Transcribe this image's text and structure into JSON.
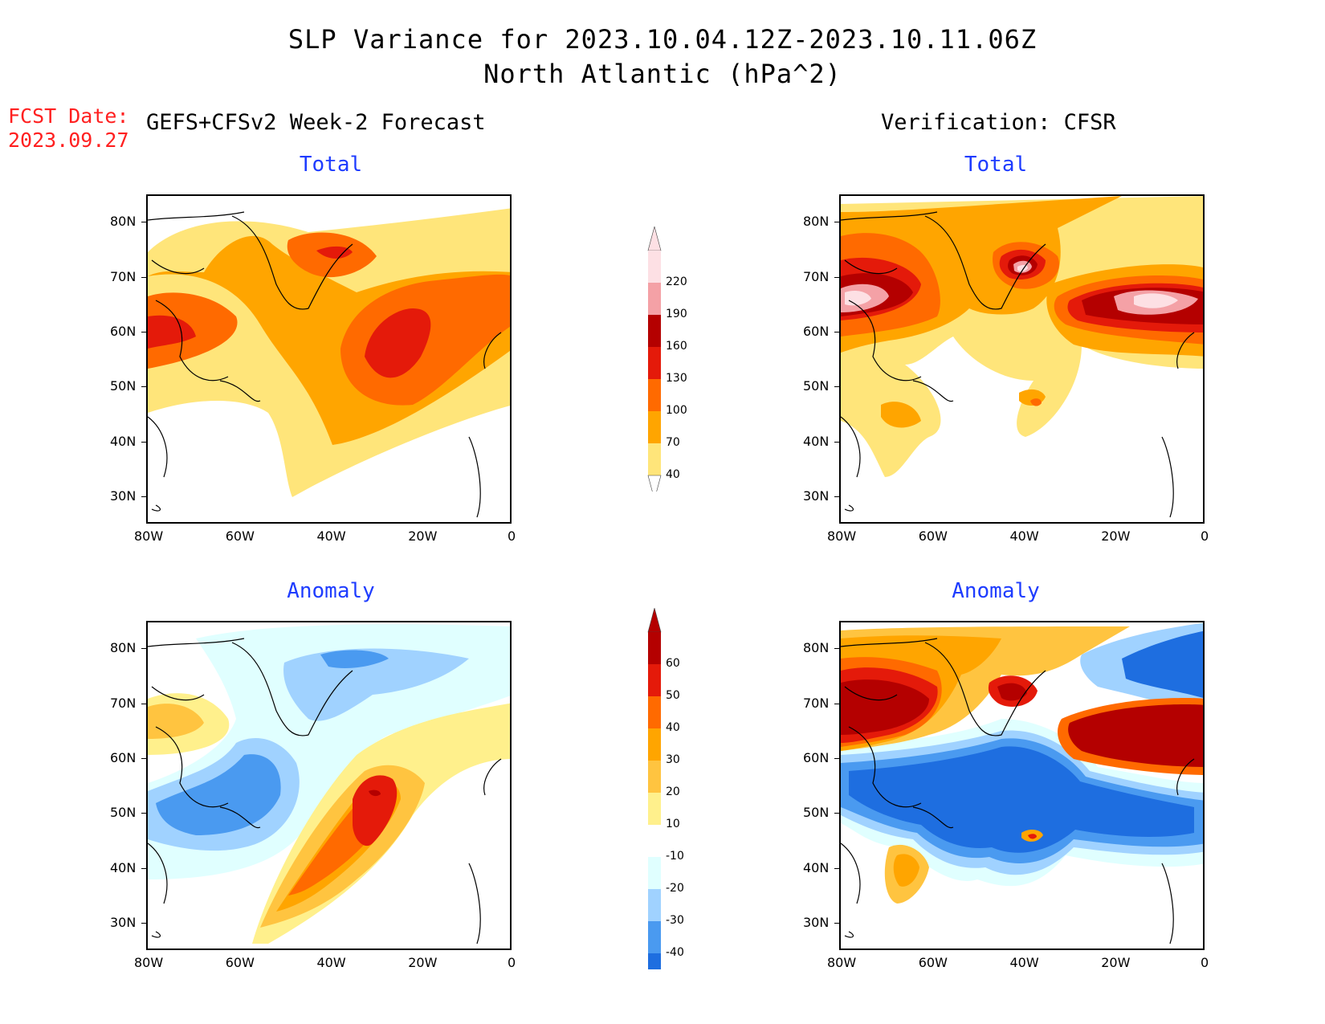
{
  "title": {
    "line1": "SLP Variance for 2023.10.04.12Z-2023.10.11.06Z",
    "line2": "North Atlantic (hPa^2)"
  },
  "fcst_date": {
    "label": "FCST Date:",
    "value": "2023.09.27"
  },
  "left_header": "GEFS+CFSv2 Week-2 Forecast",
  "right_header": "Verification: CFSR",
  "panels": [
    {
      "id": "fc-total",
      "title": "Total"
    },
    {
      "id": "ver-total",
      "title": "Total"
    },
    {
      "id": "fc-anom",
      "title": "Anomaly"
    },
    {
      "id": "ver-anom",
      "title": "Anomaly"
    }
  ],
  "axes": {
    "lat_labels": [
      "80N",
      "70N",
      "60N",
      "50N",
      "40N",
      "30N"
    ],
    "lon_labels": [
      "80W",
      "60W",
      "40W",
      "20W",
      "0"
    ],
    "lat_range": [
      25,
      85
    ],
    "lon_range": [
      -80,
      0
    ]
  },
  "colorbars": {
    "total": {
      "levels": [
        "220",
        "190",
        "160",
        "130",
        "100",
        "70",
        "40"
      ],
      "colors": [
        "#fde0e4",
        "#f4a1a6",
        "#b40000",
        "#e41a0a",
        "#ff6a00",
        "#ffa500",
        "#ffe57a"
      ]
    },
    "anomaly": {
      "levels": [
        "60",
        "50",
        "40",
        "30",
        "20",
        "10",
        "-10",
        "-20",
        "-30",
        "-40"
      ],
      "colors": [
        "#b40000",
        "#e41a0a",
        "#ff6a00",
        "#ffa500",
        "#ffc440",
        "#fff08c",
        "#ffffff",
        "#e0ffff",
        "#a0d2ff",
        "#4a9af0",
        "#1e6ee0"
      ]
    }
  },
  "chart_data": [
    {
      "type": "heatmap",
      "title": "Total",
      "panel": "GEFS+CFSv2 Week-2 Forecast",
      "units": "hPa^2",
      "xlim": [
        -80,
        0
      ],
      "ylim": [
        25,
        85
      ],
      "features": [
        {
          "lon": -40,
          "lat": 74,
          "value": 160
        },
        {
          "lon": -27,
          "lat": 56,
          "value": 160
        },
        {
          "lon": -77,
          "lat": 61,
          "value": 140
        }
      ]
    },
    {
      "type": "heatmap",
      "title": "Total",
      "panel": "Verification: CFSR",
      "units": "hPa^2",
      "xlim": [
        -80,
        0
      ],
      "ylim": [
        25,
        85
      ],
      "features": [
        {
          "lon": -74,
          "lat": 65,
          "value": 220
        },
        {
          "lon": -42,
          "lat": 71,
          "value": 220
        },
        {
          "lon": -10,
          "lat": 64,
          "value": 220
        },
        {
          "lon": -35,
          "lat": 45,
          "value": 100
        }
      ]
    },
    {
      "type": "heatmap",
      "title": "Anomaly",
      "panel": "GEFS+CFSv2 Week-2 Forecast",
      "units": "hPa^2",
      "xlim": [
        -80,
        0
      ],
      "ylim": [
        25,
        85
      ],
      "features": [
        {
          "lon": -28,
          "lat": 52,
          "value": 55
        },
        {
          "lon": -65,
          "lat": 51,
          "value": -35
        },
        {
          "lon": -40,
          "lat": 77,
          "value": -25
        }
      ]
    },
    {
      "type": "heatmap",
      "title": "Anomaly",
      "panel": "Verification: CFSR",
      "units": "hPa^2",
      "xlim": [
        -80,
        0
      ],
      "ylim": [
        25,
        85
      ],
      "features": [
        {
          "lon": -70,
          "lat": 67,
          "value": 60
        },
        {
          "lon": -42,
          "lat": 72,
          "value": 60
        },
        {
          "lon": -10,
          "lat": 64,
          "value": 60
        },
        {
          "lon": -40,
          "lat": 52,
          "value": -40
        },
        {
          "lon": -8,
          "lat": 77,
          "value": -40
        }
      ]
    }
  ]
}
